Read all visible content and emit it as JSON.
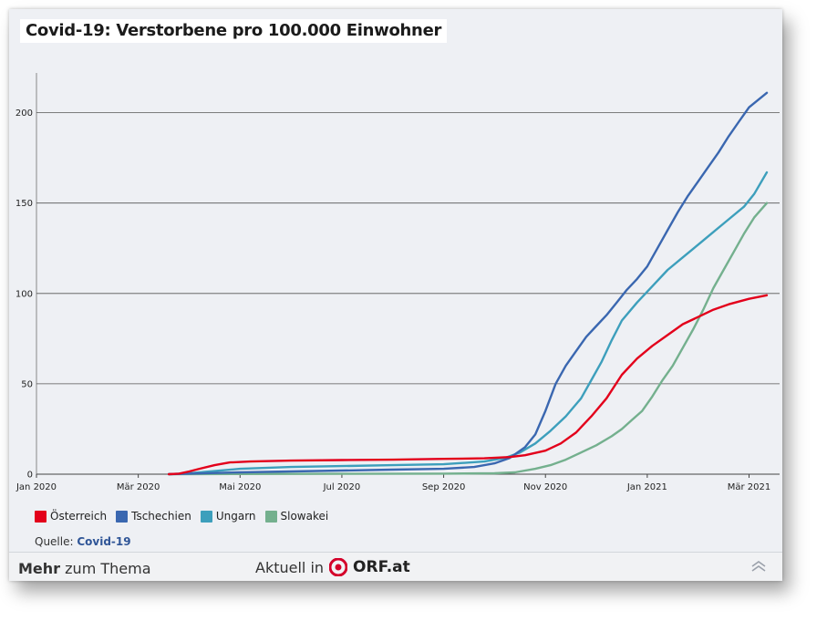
{
  "title": "Covid-19: Verstorbene pro 100.000 Einwohner",
  "chart_data": {
    "type": "line",
    "title": "Covid-19: Verstorbene pro 100.000 Einwohner",
    "xlabel": "",
    "ylabel": "",
    "ylim": [
      0,
      222
    ],
    "xlim": [
      0,
      14.6
    ],
    "yticks": [
      0,
      50,
      100,
      150,
      200
    ],
    "xticks": [
      {
        "pos": 0,
        "label": "Jan 2020"
      },
      {
        "pos": 2,
        "label": "Mär 2020"
      },
      {
        "pos": 4,
        "label": "Mai 2020"
      },
      {
        "pos": 6,
        "label": "Jul 2020"
      },
      {
        "pos": 8,
        "label": "Sep 2020"
      },
      {
        "pos": 10,
        "label": "Nov 2020"
      },
      {
        "pos": 12,
        "label": "Jan 2021"
      },
      {
        "pos": 14,
        "label": "Mär 2021"
      }
    ],
    "x_unit": "months since Jan 2020",
    "series": [
      {
        "name": "Österreich",
        "color": "#e3001b",
        "points": [
          [
            2.6,
            0
          ],
          [
            2.8,
            0.3
          ],
          [
            3.0,
            1.5
          ],
          [
            3.2,
            3
          ],
          [
            3.5,
            5
          ],
          [
            3.8,
            6.5
          ],
          [
            4.2,
            7
          ],
          [
            5,
            7.5
          ],
          [
            6,
            7.8
          ],
          [
            7,
            8
          ],
          [
            8,
            8.5
          ],
          [
            8.8,
            8.8
          ],
          [
            9.3,
            9.5
          ],
          [
            9.6,
            10.5
          ],
          [
            10.0,
            13
          ],
          [
            10.3,
            17
          ],
          [
            10.6,
            23
          ],
          [
            10.9,
            32
          ],
          [
            11.2,
            42
          ],
          [
            11.5,
            55
          ],
          [
            11.8,
            64
          ],
          [
            12.1,
            71
          ],
          [
            12.4,
            77
          ],
          [
            12.7,
            83
          ],
          [
            13.0,
            87
          ],
          [
            13.3,
            91
          ],
          [
            13.6,
            94
          ],
          [
            14.0,
            97
          ],
          [
            14.35,
            99
          ]
        ]
      },
      {
        "name": "Tschechien",
        "color": "#3a67b0",
        "points": [
          [
            2.6,
            0
          ],
          [
            3.0,
            0.3
          ],
          [
            4,
            1
          ],
          [
            5,
            1.5
          ],
          [
            6,
            2
          ],
          [
            7,
            2.5
          ],
          [
            8,
            3
          ],
          [
            8.6,
            4
          ],
          [
            9.0,
            6
          ],
          [
            9.3,
            9
          ],
          [
            9.6,
            15
          ],
          [
            9.8,
            22
          ],
          [
            10.0,
            35
          ],
          [
            10.2,
            50
          ],
          [
            10.4,
            60
          ],
          [
            10.6,
            68
          ],
          [
            10.8,
            76
          ],
          [
            11.0,
            82
          ],
          [
            11.2,
            88
          ],
          [
            11.4,
            95
          ],
          [
            11.6,
            102
          ],
          [
            11.8,
            108
          ],
          [
            12.0,
            115
          ],
          [
            12.2,
            125
          ],
          [
            12.4,
            135
          ],
          [
            12.6,
            145
          ],
          [
            12.8,
            154
          ],
          [
            13.0,
            162
          ],
          [
            13.2,
            170
          ],
          [
            13.4,
            178
          ],
          [
            13.6,
            187
          ],
          [
            13.8,
            195
          ],
          [
            14.0,
            203
          ],
          [
            14.35,
            211
          ]
        ]
      },
      {
        "name": "Ungarn",
        "color": "#3d9fbc",
        "points": [
          [
            2.6,
            0
          ],
          [
            3.0,
            0.5
          ],
          [
            4,
            3
          ],
          [
            5,
            4
          ],
          [
            6,
            4.5
          ],
          [
            7,
            5
          ],
          [
            8,
            5.5
          ],
          [
            8.8,
            7
          ],
          [
            9.2,
            9
          ],
          [
            9.5,
            12
          ],
          [
            9.8,
            17
          ],
          [
            10.1,
            24
          ],
          [
            10.4,
            32
          ],
          [
            10.7,
            42
          ],
          [
            10.9,
            52
          ],
          [
            11.1,
            62
          ],
          [
            11.3,
            74
          ],
          [
            11.5,
            85
          ],
          [
            11.8,
            95
          ],
          [
            12.1,
            104
          ],
          [
            12.4,
            113
          ],
          [
            12.7,
            120
          ],
          [
            13.0,
            127
          ],
          [
            13.3,
            134
          ],
          [
            13.6,
            141
          ],
          [
            13.9,
            148
          ],
          [
            14.1,
            155
          ],
          [
            14.35,
            167
          ]
        ]
      },
      {
        "name": "Slowakei",
        "color": "#74b08e",
        "points": [
          [
            2.6,
            0
          ],
          [
            4,
            0.1
          ],
          [
            6,
            0.2
          ],
          [
            8,
            0.3
          ],
          [
            9.0,
            0.5
          ],
          [
            9.4,
            1
          ],
          [
            9.8,
            3
          ],
          [
            10.1,
            5
          ],
          [
            10.4,
            8
          ],
          [
            10.7,
            12
          ],
          [
            11.0,
            16
          ],
          [
            11.3,
            21
          ],
          [
            11.5,
            25
          ],
          [
            11.7,
            30
          ],
          [
            11.9,
            35
          ],
          [
            12.1,
            43
          ],
          [
            12.3,
            52
          ],
          [
            12.5,
            60
          ],
          [
            12.7,
            70
          ],
          [
            12.9,
            80
          ],
          [
            13.1,
            91
          ],
          [
            13.3,
            103
          ],
          [
            13.5,
            113
          ],
          [
            13.7,
            123
          ],
          [
            13.9,
            133
          ],
          [
            14.1,
            142
          ],
          [
            14.35,
            150
          ]
        ]
      }
    ]
  },
  "legend": [
    {
      "label": "Österreich",
      "color": "#e3001b"
    },
    {
      "label": "Tschechien",
      "color": "#3a67b0"
    },
    {
      "label": "Ungarn",
      "color": "#3d9fbc"
    },
    {
      "label": "Slowakei",
      "color": "#74b08e"
    }
  ],
  "source": {
    "prefix": "Quelle:",
    "link": "Covid-19"
  },
  "footer": {
    "mehr": "Mehr",
    "zum_thema": "zum Thema",
    "aktuell_in": "Aktuell in",
    "orf": "ORF.at"
  }
}
